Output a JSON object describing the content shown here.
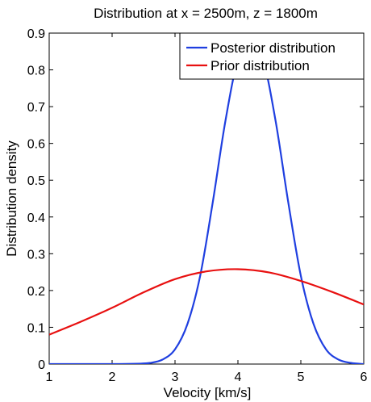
{
  "chart_data": {
    "type": "line",
    "title": "Distribution at x = 2500m, z = 1800m",
    "xlabel": "Velocity [km/s]",
    "ylabel": "Distribution density",
    "xlim": [
      1,
      6
    ],
    "ylim": [
      0,
      0.9
    ],
    "xticks": [
      1,
      2,
      3,
      4,
      5,
      6
    ],
    "yticks": [
      0,
      0.1,
      0.2,
      0.3,
      0.4,
      0.5,
      0.6,
      0.7,
      0.8,
      0.9
    ],
    "xtick_labels": [
      "1",
      "2",
      "3",
      "4",
      "5",
      "6"
    ],
    "ytick_labels": [
      "0",
      "0.1",
      "0.2",
      "0.3",
      "0.4",
      "0.5",
      "0.6",
      "0.7",
      "0.8",
      "0.9"
    ],
    "grid": false,
    "legend_position": "top-right",
    "series": [
      {
        "name": "Posterior distribution",
        "color": "#1f3fe0",
        "x": [
          1.0,
          2.0,
          2.4,
          2.6,
          2.8,
          3.0,
          3.2,
          3.4,
          3.6,
          3.8,
          4.0,
          4.2,
          4.4,
          4.6,
          4.8,
          5.0,
          5.2,
          5.4,
          5.6,
          5.8,
          6.0
        ],
        "y": [
          0.0,
          0.0,
          0.001,
          0.003,
          0.012,
          0.04,
          0.11,
          0.24,
          0.44,
          0.66,
          0.83,
          0.9,
          0.83,
          0.66,
          0.44,
          0.24,
          0.11,
          0.04,
          0.012,
          0.003,
          0.0
        ]
      },
      {
        "name": "Prior distribution",
        "color": "#e81010",
        "x": [
          1.0,
          1.5,
          2.0,
          2.5,
          3.0,
          3.5,
          4.0,
          4.5,
          5.0,
          5.5,
          6.0
        ],
        "y": [
          0.08,
          0.115,
          0.153,
          0.195,
          0.231,
          0.252,
          0.258,
          0.249,
          0.226,
          0.196,
          0.162
        ]
      }
    ]
  }
}
